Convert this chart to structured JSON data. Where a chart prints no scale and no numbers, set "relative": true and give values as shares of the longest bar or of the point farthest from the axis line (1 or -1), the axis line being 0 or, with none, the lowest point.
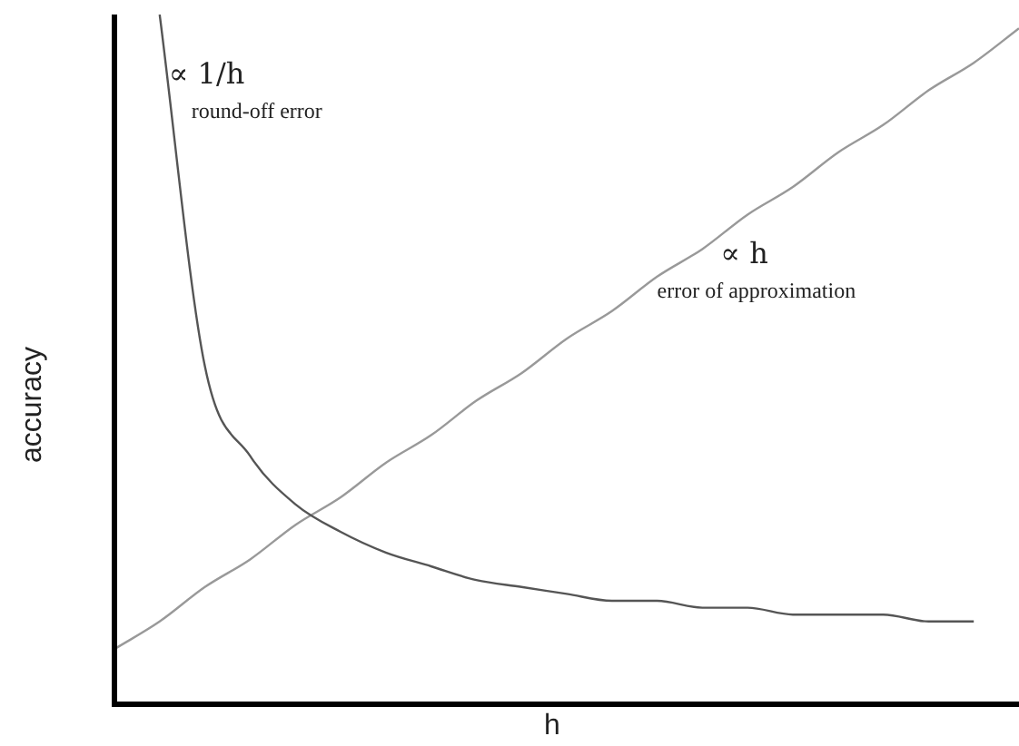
{
  "chart_data": {
    "type": "line",
    "relative": true,
    "xlabel": "h",
    "ylabel": "accuracy",
    "marker": "none",
    "categories": [
      null,
      null,
      null,
      null,
      null,
      null,
      null,
      null,
      null,
      null,
      null,
      null,
      null,
      null,
      null,
      null,
      null,
      null,
      null,
      null,
      null
    ],
    "annotations": [
      "∝ 1/h",
      "round-off error",
      "∝ h",
      "error of approximation"
    ],
    "series": [
      {
        "color": "#555555",
        "values": [
          null,
          1.0,
          0.49,
          0.36,
          0.29,
          0.25,
          0.22,
          0.2,
          0.18,
          0.17,
          0.16,
          0.15,
          0.15,
          0.14,
          0.14,
          0.13,
          0.13,
          0.13,
          0.12,
          0.12,
          null
        ]
      },
      {
        "color": "#999999",
        "values": [
          0.08,
          0.12,
          0.17,
          0.21,
          0.26,
          0.3,
          0.35,
          0.39,
          0.44,
          0.48,
          0.53,
          0.57,
          0.62,
          0.66,
          0.71,
          0.75,
          0.8,
          0.84,
          0.89,
          0.93,
          0.98
        ]
      }
    ]
  }
}
